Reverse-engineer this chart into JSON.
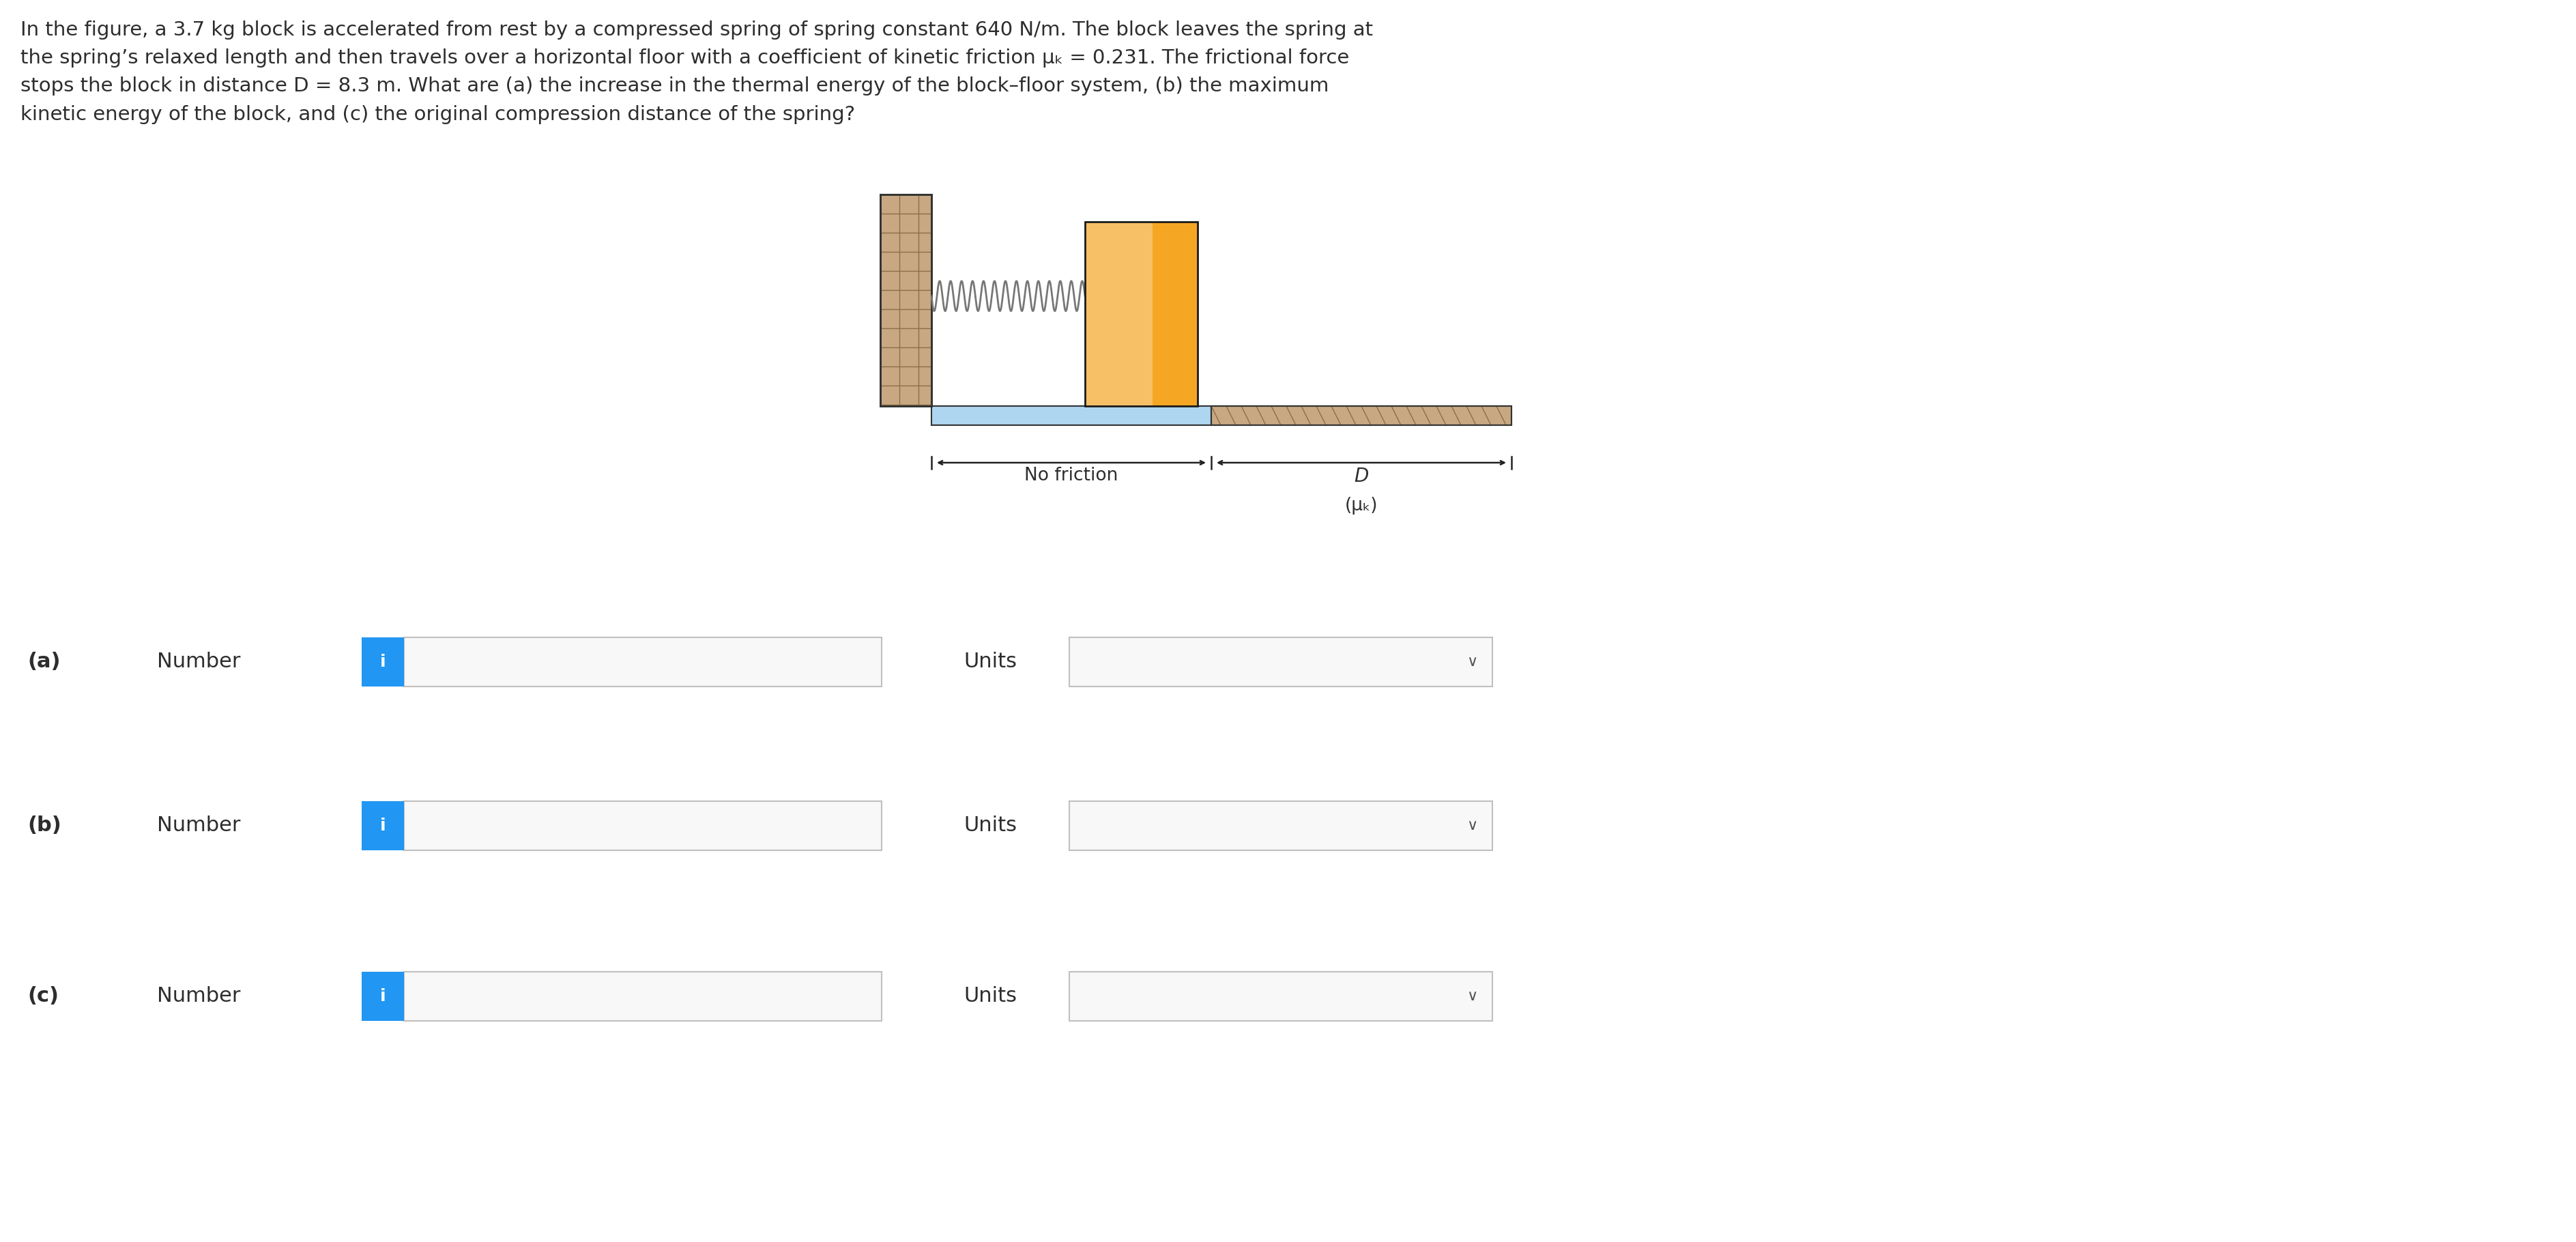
{
  "background_color": "#ffffff",
  "text_color": "#2d2d2d",
  "title_text": "In the figure, a 3.7 kg block is accelerated from rest by a compressed spring of spring constant 640 N/m. The block leaves the spring at\nthe spring’s relaxed length and then travels over a horizontal floor with a coefficient of kinetic friction μₖ = 0.231. The frictional force\nstops the block in distance D = 8.3 m. What are (a) the increase in the thermal energy of the block–floor system, (b) the maximum\nkinetic energy of the block, and (c) the original compression distance of the spring?",
  "title_fontsize": 21,
  "label_fontsize": 22,
  "info_fontsize": 18,
  "parts": [
    "(a)",
    "(b)",
    "(c)"
  ],
  "number_label": "Number",
  "units_label": "Units",
  "info_btn_color": "#2196F3",
  "info_btn_text": "i",
  "block_color_orange": "#F5A623",
  "block_edge_color": "#1a1a1a",
  "floor_color_light": "#AED6F1",
  "arrow_color": "#222222",
  "nofriction_label": "No friction",
  "D_label": "D",
  "mu_label": "(μₖ)"
}
